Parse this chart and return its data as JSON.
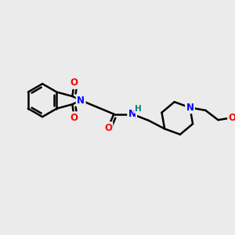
{
  "background_color": "#ebebeb",
  "bond_color": "#000000",
  "bond_width": 1.8,
  "atom_colors": {
    "N": "#0000ff",
    "O": "#ff0000",
    "H": "#008080",
    "C": "#000000"
  },
  "font_size_atom": 8.5
}
